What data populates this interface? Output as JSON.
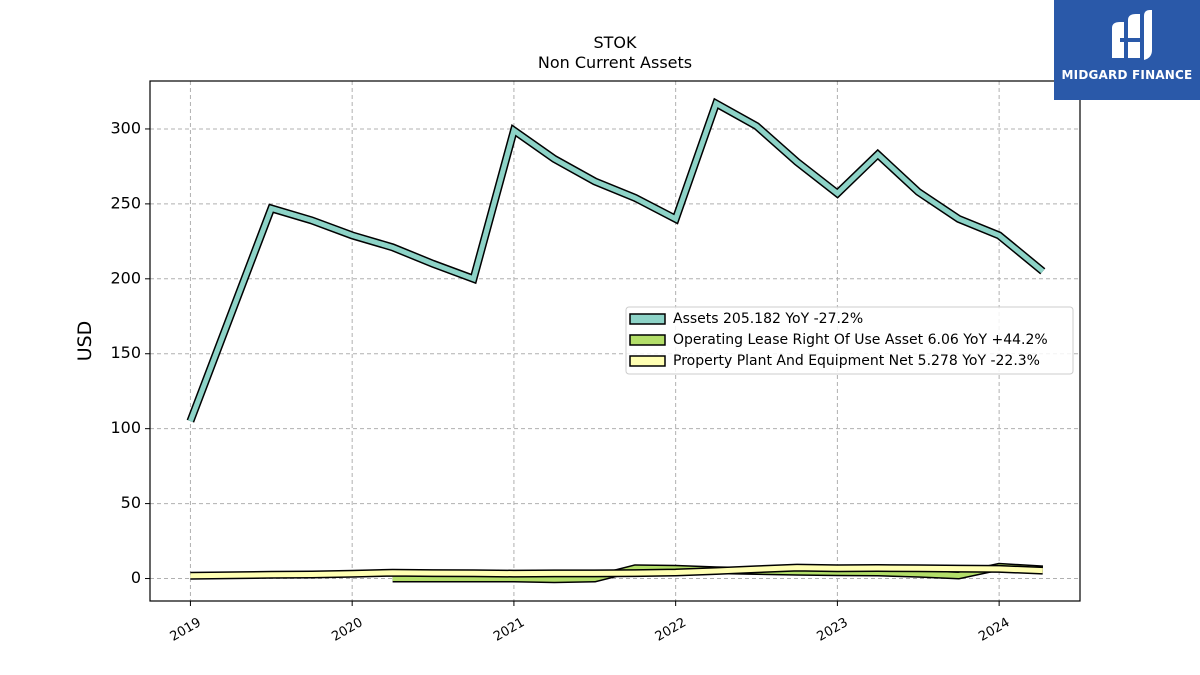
{
  "brand": {
    "name": "MIDGARD FINANCE",
    "bg_color": "#2a59a9"
  },
  "chart_data": {
    "type": "line",
    "title": "STOK",
    "subtitle": "Non Current  Assets",
    "ylabel": "USD",
    "xlabel": "",
    "ylim": [
      -15,
      332
    ],
    "yticks": [
      0,
      50,
      100,
      150,
      200,
      250,
      300
    ],
    "xlim": [
      2018.75,
      2024.5
    ],
    "xticks": [
      2019,
      2020,
      2021,
      2022,
      2023,
      2024
    ],
    "grid": true,
    "legend_position": "center-right",
    "series": [
      {
        "name": "Assets",
        "legend": "Assets  205.182 YoY -27.2%",
        "color": "#8dd3c7",
        "points": [
          [
            2019.0,
            105
          ],
          [
            2019.5,
            247
          ],
          [
            2019.75,
            239
          ],
          [
            2020.0,
            229
          ],
          [
            2020.25,
            221
          ],
          [
            2020.5,
            210
          ],
          [
            2020.75,
            200
          ],
          [
            2021.0,
            299
          ],
          [
            2021.25,
            280
          ],
          [
            2021.5,
            265
          ],
          [
            2021.75,
            254
          ],
          [
            2022.0,
            240
          ],
          [
            2022.25,
            317
          ],
          [
            2022.5,
            302
          ],
          [
            2022.75,
            278
          ],
          [
            2023.0,
            257
          ],
          [
            2023.25,
            283
          ],
          [
            2023.5,
            258
          ],
          [
            2023.75,
            240
          ],
          [
            2024.0,
            229
          ],
          [
            2024.27,
            205
          ]
        ]
      },
      {
        "name": "Operating Lease Right Of Use Asset",
        "legend": "Operating Lease Right Of Use Asset  6.06 YoY +44.2%",
        "color": "#b3de69",
        "points": [
          [
            2020.25,
            0
          ],
          [
            2020.5,
            0
          ],
          [
            2020.75,
            0
          ],
          [
            2021.0,
            0
          ],
          [
            2021.25,
            -0.5
          ],
          [
            2021.5,
            0
          ],
          [
            2021.75,
            6.8
          ],
          [
            2022.0,
            6.5
          ],
          [
            2022.25,
            5.5
          ],
          [
            2022.5,
            5.0
          ],
          [
            2022.75,
            4.5
          ],
          [
            2023.0,
            4.2
          ],
          [
            2023.25,
            4.0
          ],
          [
            2023.5,
            3.2
          ],
          [
            2023.75,
            2.0
          ],
          [
            2024.0,
            7.8
          ],
          [
            2024.27,
            6.06
          ]
        ]
      },
      {
        "name": "Property Plant And Equipment Net",
        "legend": "Property Plant And Equipment Net  5.278 YoY -22.3%",
        "color": "#ffffb3",
        "points": [
          [
            2019.0,
            1.8
          ],
          [
            2019.5,
            2.5
          ],
          [
            2019.75,
            2.7
          ],
          [
            2020.0,
            3.2
          ],
          [
            2020.25,
            3.8
          ],
          [
            2020.5,
            3.6
          ],
          [
            2020.75,
            3.5
          ],
          [
            2021.0,
            3.3
          ],
          [
            2021.25,
            3.4
          ],
          [
            2021.5,
            3.4
          ],
          [
            2021.75,
            3.6
          ],
          [
            2022.0,
            4.0
          ],
          [
            2022.25,
            5.0
          ],
          [
            2022.5,
            6.2
          ],
          [
            2022.75,
            7.3
          ],
          [
            2023.0,
            6.8
          ],
          [
            2023.25,
            7.0
          ],
          [
            2023.5,
            6.8
          ],
          [
            2023.75,
            6.6
          ],
          [
            2024.0,
            6.4
          ],
          [
            2024.27,
            5.278
          ]
        ]
      }
    ]
  }
}
